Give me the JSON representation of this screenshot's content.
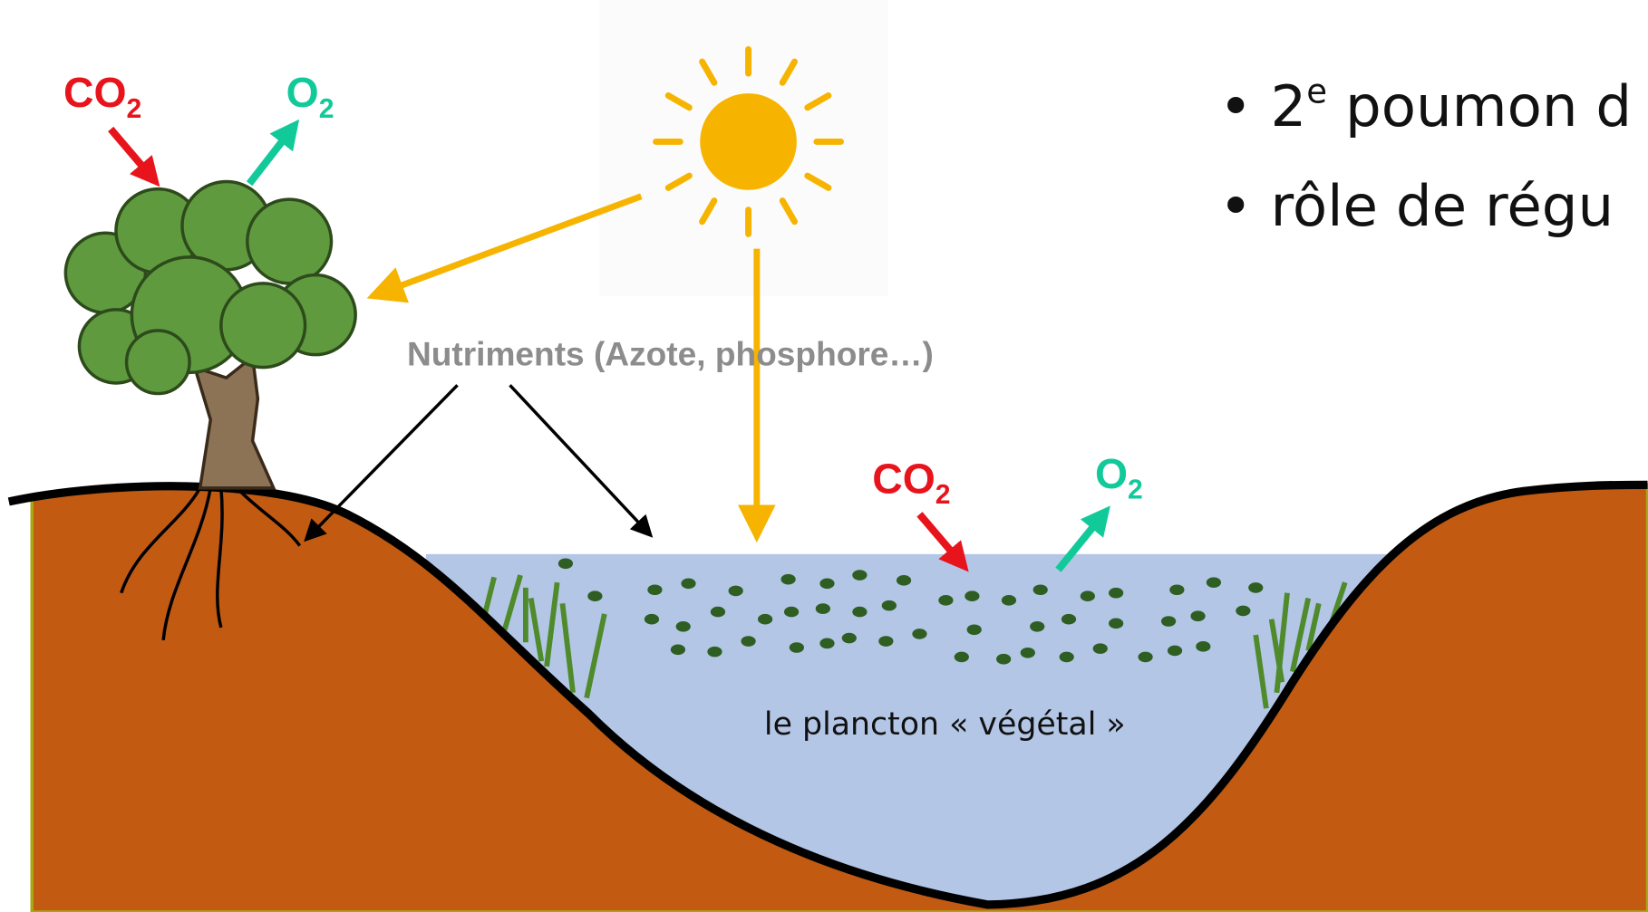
{
  "tree_labels": {
    "co2": {
      "base": "CO",
      "sub": "2"
    },
    "o2": {
      "base": "O",
      "sub": "2"
    }
  },
  "water_labels": {
    "co2": {
      "base": "CO",
      "sub": "2"
    },
    "o2": {
      "base": "O",
      "sub": "2"
    }
  },
  "nutrients": "Nutriments (Azote, phosphore…)",
  "plankton": "le plancton « végétal »",
  "bullets": [
    {
      "number": "2",
      "sup": "e",
      "text": " poumon d"
    },
    {
      "text": "rôle de régu"
    }
  ]
}
